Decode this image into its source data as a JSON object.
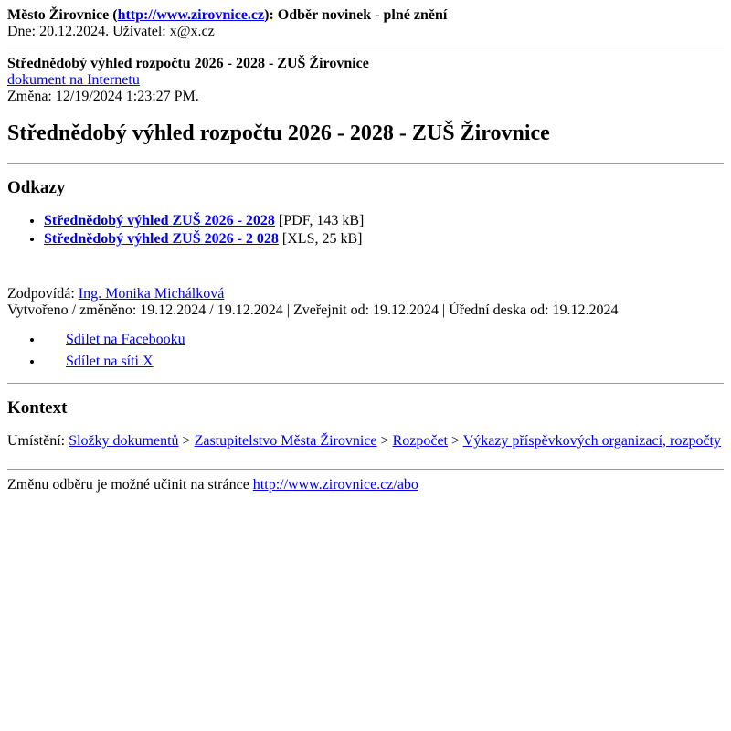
{
  "header": {
    "site_name": "Město Žirovnice",
    "site_url_text": "http://www.zirovnice.cz",
    "header_tail": "): Odběr novinek - plné znění",
    "date_label": "Dne: ",
    "date_value": "20.12.2024",
    "user_label": ". Uživatel: ",
    "user_value": "x@x.cz"
  },
  "doc_meta": {
    "title_bold": "Střednědobý výhled rozpočtu 2026 - 2028 - ZUŠ Žirovnice",
    "doc_link_text": "dokument na Internetu",
    "change_label": "Změna: ",
    "change_value": "12/19/2024 1:23:27 PM."
  },
  "main_heading": "Střednědobý výhled rozpočtu 2026 - 2028 - ZUŠ Žirovnice",
  "links_section": {
    "heading": "Odkazy",
    "items": [
      {
        "text": "Střednědobý výhled ZUŠ 2026 - 2028",
        "suffix": " [PDF, 143 kB]"
      },
      {
        "text": "Střednědobý výhled ZUŠ 2026 - 2 028",
        "suffix": " [XLS, 25 kB]"
      }
    ]
  },
  "responsibility": {
    "label": "Zodpovídá: ",
    "person": "Ing. Monika Michálková",
    "meta_line": "Vytvořeno / změněno: 19.12.2024 / 19.12.2024 | Zveřejnit od: 19.12.2024 | Úřední deska od: 19.12.2024"
  },
  "share": {
    "facebook": "Sdílet na Facebooku",
    "x": "Sdílet na síti X"
  },
  "context": {
    "heading": "Kontext",
    "location_label": "Umístění: ",
    "crumbs": [
      "Složky dokumentů",
      "Zastupitelstvo Města Žirovnice",
      "Rozpočet",
      "Výkazy příspěvkových organizací, rozpočty"
    ],
    "sep": " > "
  },
  "footer": {
    "note_text": "Změnu odběru je možné učinit na stránce ",
    "link_text": "http://www.zirovnice.cz/abo"
  }
}
